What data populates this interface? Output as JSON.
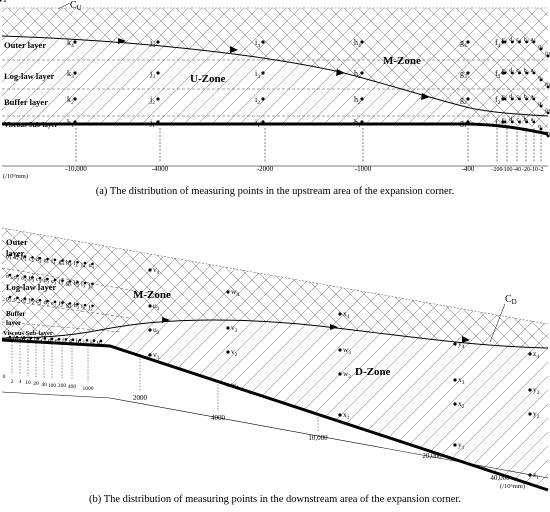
{
  "panel_a": {
    "curve_label": "CU",
    "layers": [
      "Outer layer",
      "Log-law layer",
      "Buffer layer",
      "Viscous Sub-layer"
    ],
    "zones": [
      "U-Zone",
      "M-Zone"
    ],
    "point_rows": [
      [
        "k4",
        "j4",
        "i4",
        "h4",
        "g4",
        "f4",
        "e4",
        "d4",
        "c4",
        "b4",
        "a4",
        "o4",
        "(o'4)"
      ],
      [
        "k3",
        "j3",
        "i3",
        "h3",
        "g3",
        "f3",
        "e3",
        "d3",
        "c3",
        "b3",
        "a3",
        "o3",
        "(o'3)"
      ],
      [
        "k2",
        "j2",
        "i2",
        "h2",
        "g2",
        "f2",
        "e2",
        "d2",
        "c2",
        "b2",
        "a2",
        "o2",
        "(o'2)"
      ],
      [
        "k1",
        "j1",
        "i1",
        "h1",
        "g1",
        "f1",
        "e1",
        "d1",
        "c1",
        "b1",
        "a1",
        "o1",
        "(o1)",
        "(o'1)"
      ]
    ],
    "x_ticks": [
      "-10,000",
      "-4000",
      "-2000",
      "-1000",
      "-400",
      "-200",
      "-100",
      "-40",
      "-20",
      "-10",
      "-2"
    ],
    "axis_unit": "(/10⁶mm)",
    "caption": "(a)  The distribution of measuring points in the upstream area of the expansion corner."
  },
  "panel_b": {
    "curve_label": "CD",
    "layers": [
      "Outer layer",
      "Log-law layer",
      "Buffer layer",
      "Viscous Sub-layer"
    ],
    "zones": [
      "M-Zone",
      "D-Zone"
    ],
    "point_rows": [
      [
        "o4",
        "a4",
        "b4",
        "c4",
        "d4",
        "e4",
        "f4",
        "g4",
        "h4",
        "i4",
        "j4",
        "u4",
        "v4",
        "w4",
        "x4",
        "y4",
        "z4"
      ],
      [
        "o'4",
        "o3",
        "a3",
        "b3",
        "c3",
        "d3",
        "e3",
        "f3",
        "g3",
        "h3",
        "i3",
        "j3",
        "u3",
        "v3",
        "w3",
        "x3",
        "y3",
        "z3"
      ],
      [
        "o2",
        "o'2",
        "a2",
        "b2",
        "c2",
        "d2",
        "e2",
        "f2",
        "g2",
        "h2",
        "i2",
        "j2",
        "u2",
        "v2",
        "w2",
        "x2",
        "y2",
        "z2"
      ],
      [
        "o1",
        "(o1)",
        "(o'1)",
        "a1",
        "b1",
        "c1",
        "d1",
        "e1",
        "f1",
        "g1",
        "h1",
        "i1",
        "j1",
        "u1",
        "v1",
        "w1",
        "x1",
        "y1",
        "z1"
      ]
    ],
    "x_ticks": [
      "0",
      "2",
      "4",
      "10",
      "20",
      "40",
      "100",
      "200",
      "400",
      "1000",
      "2000",
      "4000",
      "10,000",
      "20,000",
      "40,000"
    ],
    "axis_unit": "(/10⁶mm)",
    "caption": "(b)  The distribution of measuring points in the downstream area of the expansion corner."
  }
}
